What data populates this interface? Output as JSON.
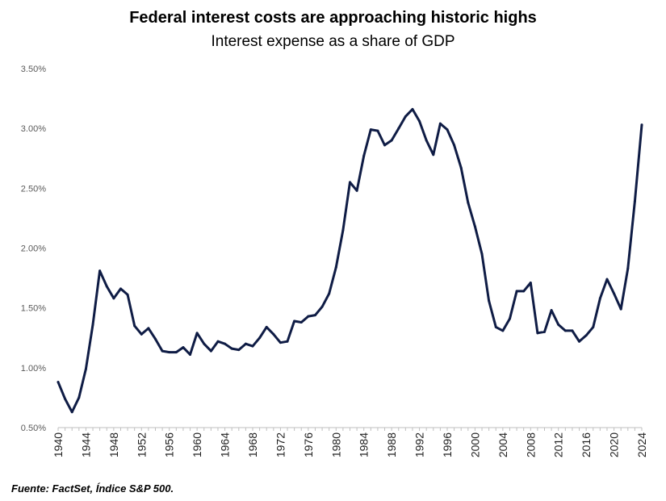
{
  "title": "Federal interest costs are approaching historic highs",
  "subtitle": "Interest expense as a share of GDP",
  "source": "Fuente: FactSet, Índice S&P 500.",
  "colors": {
    "line": "#0f1c45",
    "axis": "#bfbfbf",
    "tick_text": "#595959"
  },
  "chart_data": {
    "type": "line",
    "title": "Federal interest costs are approaching historic highs",
    "subtitle": "Interest expense as a share of GDP",
    "xlabel": "",
    "ylabel": "",
    "ylim": [
      0.5,
      3.5
    ],
    "xlim": [
      1940,
      2024
    ],
    "grid": false,
    "y_ticks": [
      "0.50%",
      "1.00%",
      "1.50%",
      "2.00%",
      "2.50%",
      "3.00%",
      "3.50%"
    ],
    "y_tick_values": [
      0.5,
      1.0,
      1.5,
      2.0,
      2.5,
      3.0,
      3.5
    ],
    "x_ticks": [
      "1940",
      "1944",
      "1948",
      "1952",
      "1956",
      "1960",
      "1964",
      "1968",
      "1972",
      "1976",
      "1980",
      "1984",
      "1988",
      "1992",
      "1996",
      "2000",
      "2004",
      "2008",
      "2012",
      "2016",
      "2020",
      "2024"
    ],
    "x": [
      1940,
      1941,
      1942,
      1943,
      1944,
      1945,
      1946,
      1947,
      1948,
      1949,
      1950,
      1951,
      1952,
      1953,
      1954,
      1955,
      1956,
      1957,
      1958,
      1959,
      1960,
      1961,
      1962,
      1963,
      1964,
      1965,
      1966,
      1967,
      1968,
      1969,
      1970,
      1971,
      1972,
      1973,
      1974,
      1975,
      1976,
      1977,
      1978,
      1979,
      1980,
      1981,
      1982,
      1983,
      1984,
      1985,
      1986,
      1987,
      1988,
      1989,
      1990,
      1991,
      1992,
      1993,
      1994,
      1995,
      1996,
      1997,
      1998,
      1999,
      2000,
      2001,
      2002,
      2003,
      2004,
      2005,
      2006,
      2007,
      2008,
      2009,
      2010,
      2011,
      2012,
      2013,
      2014,
      2015,
      2016,
      2017,
      2018,
      2019,
      2020,
      2021,
      2022,
      2023,
      2024
    ],
    "series": [
      {
        "values": [
          0.88,
          0.74,
          0.63,
          0.75,
          0.99,
          1.36,
          1.81,
          1.68,
          1.58,
          1.66,
          1.61,
          1.35,
          1.28,
          1.33,
          1.24,
          1.14,
          1.13,
          1.13,
          1.17,
          1.11,
          1.29,
          1.2,
          1.14,
          1.22,
          1.2,
          1.16,
          1.15,
          1.2,
          1.18,
          1.25,
          1.34,
          1.28,
          1.21,
          1.22,
          1.39,
          1.38,
          1.43,
          1.44,
          1.51,
          1.62,
          1.84,
          2.15,
          2.55,
          2.48,
          2.77,
          2.99,
          2.98,
          2.86,
          2.9,
          3.0,
          3.1,
          3.16,
          3.06,
          2.9,
          2.78,
          3.04,
          2.99,
          2.86,
          2.67,
          2.38,
          2.18,
          1.95,
          1.56,
          1.34,
          1.31,
          1.41,
          1.64,
          1.64,
          1.71,
          1.29,
          1.3,
          1.48,
          1.36,
          1.31,
          1.31,
          1.22,
          1.27,
          1.34,
          1.58,
          1.74,
          1.62,
          1.49,
          1.83,
          2.39,
          3.03
        ]
      }
    ]
  }
}
